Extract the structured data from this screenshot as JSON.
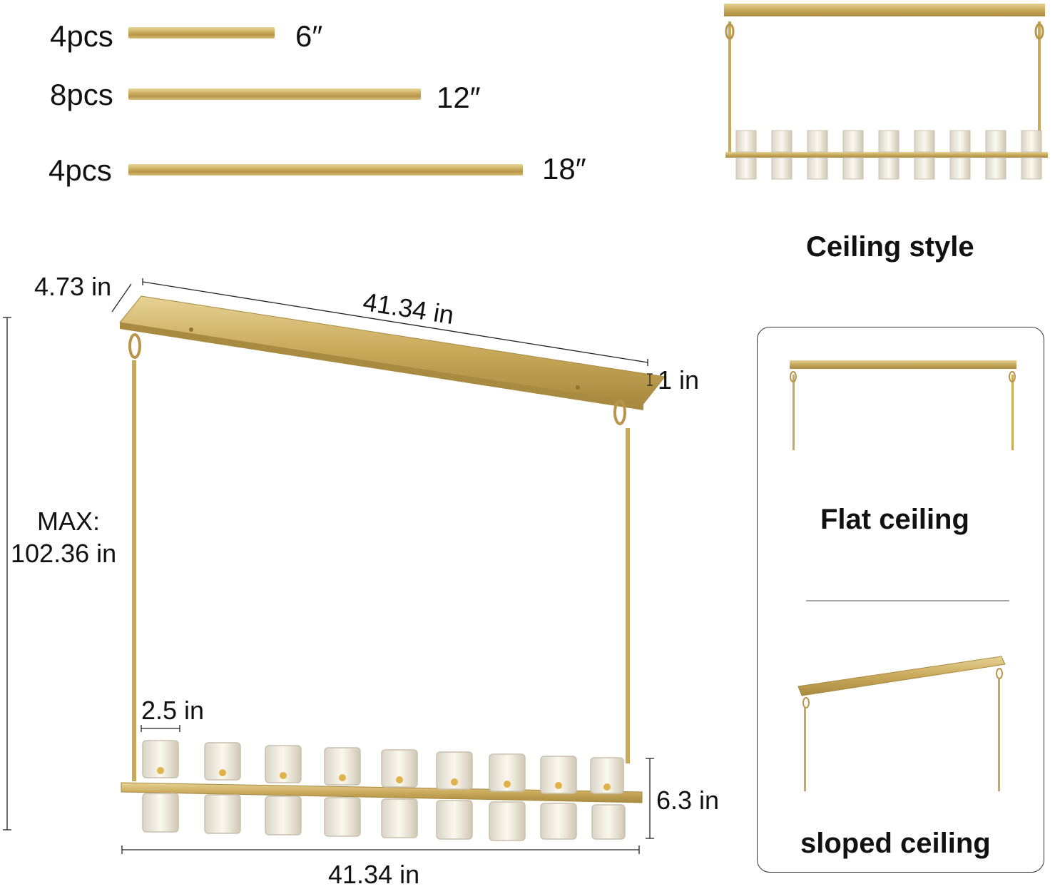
{
  "rods": [
    {
      "qty": "4pcs",
      "length": "6″"
    },
    {
      "qty": "8pcs",
      "length": "12″"
    },
    {
      "qty": "4pcs",
      "length": "18″"
    }
  ],
  "dimensions": {
    "depth": "4.73 in",
    "top_length": "41.34 in",
    "plate_height": "1 in",
    "max_height_label": "MAX:",
    "max_height_value": "102.36 in",
    "shade_width": "2.5 in",
    "bar_height": "6.3 in",
    "bottom_length": "41.34 in"
  },
  "styles": {
    "ceiling": "Ceiling style",
    "flat": "Flat ceiling",
    "sloped": "sloped ceiling"
  },
  "colors": {
    "gold": "#c9a95a",
    "gold_dark": "#a88a40",
    "glass": "#f2efe6"
  }
}
